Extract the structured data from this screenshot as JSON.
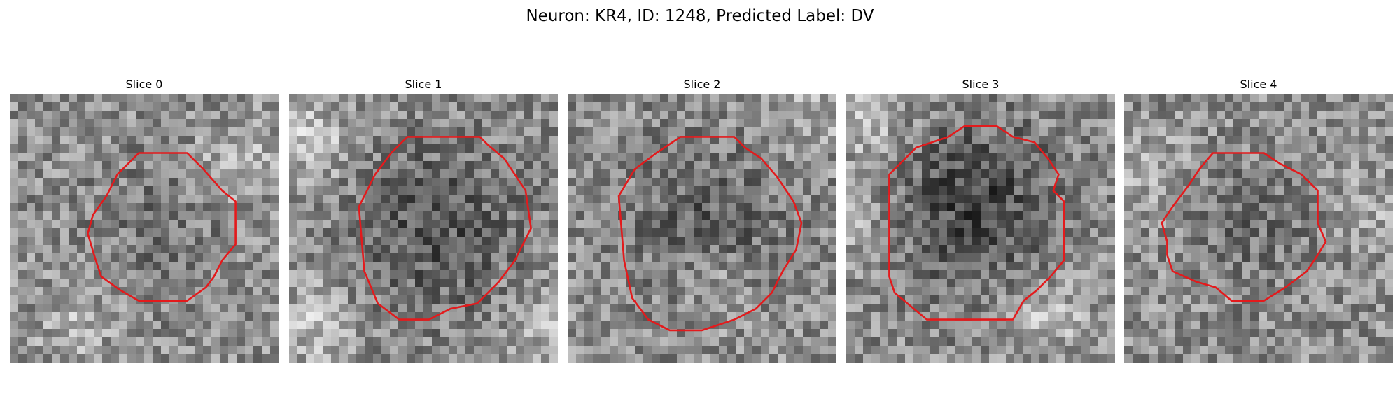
{
  "figure": {
    "title": "Neuron: KR4, ID: 1248, Predicted Label: DV"
  },
  "contour_color": "#e31a1c",
  "colormap": "gray",
  "panels": [
    {
      "title": "Slice 0",
      "seed": 11,
      "dark_center": [
        0.55,
        0.5
      ],
      "dark_radius": 0.33,
      "dark_strength": 0.1,
      "bright_spots": [
        [
          0.85,
          0.25,
          0.18
        ],
        [
          0.25,
          0.85,
          0.14
        ]
      ],
      "contour": [
        [
          0.48,
          0.22
        ],
        [
          0.66,
          0.22
        ],
        [
          0.72,
          0.28
        ],
        [
          0.79,
          0.36
        ],
        [
          0.84,
          0.4
        ],
        [
          0.84,
          0.56
        ],
        [
          0.79,
          0.62
        ],
        [
          0.76,
          0.68
        ],
        [
          0.73,
          0.72
        ],
        [
          0.66,
          0.77
        ],
        [
          0.48,
          0.77
        ],
        [
          0.41,
          0.73
        ],
        [
          0.34,
          0.68
        ],
        [
          0.32,
          0.62
        ],
        [
          0.29,
          0.52
        ],
        [
          0.31,
          0.45
        ],
        [
          0.36,
          0.38
        ],
        [
          0.4,
          0.3
        ]
      ]
    },
    {
      "title": "Slice 1",
      "seed": 23,
      "dark_center": [
        0.55,
        0.5
      ],
      "dark_radius": 0.4,
      "dark_strength": 0.22,
      "bright_spots": [
        [
          0.08,
          0.18,
          0.22
        ],
        [
          0.1,
          0.85,
          0.2
        ],
        [
          0.95,
          0.85,
          0.16
        ]
      ],
      "contour": [
        [
          0.44,
          0.16
        ],
        [
          0.71,
          0.16
        ],
        [
          0.74,
          0.19
        ],
        [
          0.8,
          0.24
        ],
        [
          0.88,
          0.36
        ],
        [
          0.9,
          0.5
        ],
        [
          0.84,
          0.62
        ],
        [
          0.78,
          0.7
        ],
        [
          0.7,
          0.78
        ],
        [
          0.6,
          0.8
        ],
        [
          0.52,
          0.84
        ],
        [
          0.41,
          0.84
        ],
        [
          0.33,
          0.78
        ],
        [
          0.28,
          0.66
        ],
        [
          0.26,
          0.42
        ],
        [
          0.32,
          0.3
        ],
        [
          0.38,
          0.22
        ]
      ]
    },
    {
      "title": "Slice 2",
      "seed": 37,
      "dark_center": [
        0.52,
        0.48
      ],
      "dark_radius": 0.38,
      "dark_strength": 0.18,
      "bright_spots": [
        [
          0.55,
          0.72,
          0.14
        ],
        [
          0.9,
          0.08,
          0.12
        ]
      ],
      "contour": [
        [
          0.42,
          0.16
        ],
        [
          0.62,
          0.16
        ],
        [
          0.66,
          0.2
        ],
        [
          0.72,
          0.24
        ],
        [
          0.78,
          0.31
        ],
        [
          0.84,
          0.4
        ],
        [
          0.87,
          0.48
        ],
        [
          0.85,
          0.58
        ],
        [
          0.8,
          0.66
        ],
        [
          0.76,
          0.74
        ],
        [
          0.7,
          0.8
        ],
        [
          0.62,
          0.84
        ],
        [
          0.5,
          0.88
        ],
        [
          0.38,
          0.88
        ],
        [
          0.3,
          0.84
        ],
        [
          0.24,
          0.76
        ],
        [
          0.21,
          0.62
        ],
        [
          0.19,
          0.38
        ],
        [
          0.25,
          0.28
        ],
        [
          0.33,
          0.22
        ]
      ]
    },
    {
      "title": "Slice 3",
      "seed": 51,
      "dark_center": [
        0.48,
        0.42
      ],
      "dark_radius": 0.4,
      "dark_strength": 0.28,
      "bright_spots": [
        [
          0.08,
          0.1,
          0.22
        ],
        [
          0.75,
          0.82,
          0.2
        ],
        [
          0.05,
          0.5,
          0.14
        ]
      ],
      "contour": [
        [
          0.38,
          0.16
        ],
        [
          0.44,
          0.12
        ],
        [
          0.56,
          0.12
        ],
        [
          0.62,
          0.16
        ],
        [
          0.7,
          0.18
        ],
        [
          0.75,
          0.24
        ],
        [
          0.79,
          0.3
        ],
        [
          0.77,
          0.36
        ],
        [
          0.81,
          0.4
        ],
        [
          0.81,
          0.62
        ],
        [
          0.76,
          0.68
        ],
        [
          0.71,
          0.73
        ],
        [
          0.66,
          0.77
        ],
        [
          0.62,
          0.84
        ],
        [
          0.3,
          0.84
        ],
        [
          0.18,
          0.74
        ],
        [
          0.16,
          0.68
        ],
        [
          0.16,
          0.3
        ],
        [
          0.26,
          0.2
        ]
      ]
    },
    {
      "title": "Slice 4",
      "seed": 67,
      "dark_center": [
        0.47,
        0.48
      ],
      "dark_radius": 0.3,
      "dark_strength": 0.12,
      "bright_spots": [
        [
          0.12,
          0.3,
          0.14
        ],
        [
          0.9,
          0.4,
          0.1
        ]
      ],
      "contour": [
        [
          0.33,
          0.22
        ],
        [
          0.52,
          0.22
        ],
        [
          0.58,
          0.26
        ],
        [
          0.66,
          0.3
        ],
        [
          0.72,
          0.36
        ],
        [
          0.72,
          0.48
        ],
        [
          0.75,
          0.55
        ],
        [
          0.72,
          0.6
        ],
        [
          0.68,
          0.66
        ],
        [
          0.6,
          0.72
        ],
        [
          0.52,
          0.77
        ],
        [
          0.4,
          0.77
        ],
        [
          0.34,
          0.72
        ],
        [
          0.27,
          0.7
        ],
        [
          0.18,
          0.66
        ],
        [
          0.16,
          0.6
        ],
        [
          0.16,
          0.55
        ],
        [
          0.14,
          0.48
        ],
        [
          0.18,
          0.42
        ],
        [
          0.24,
          0.34
        ],
        [
          0.28,
          0.28
        ]
      ]
    }
  ]
}
